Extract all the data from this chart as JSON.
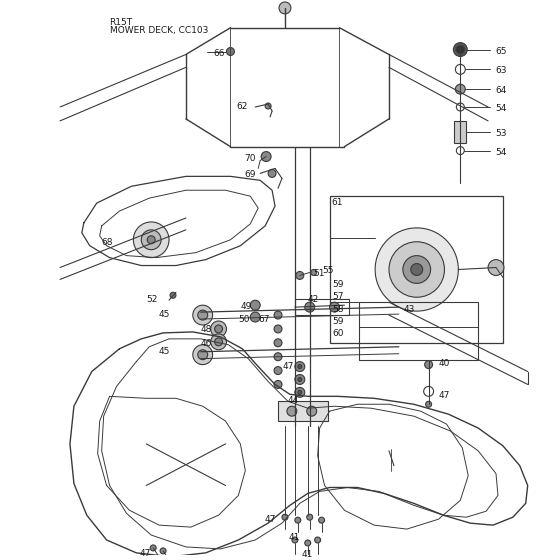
{
  "bg_color": "#ffffff",
  "line_color": "#3a3a3a",
  "text_color": "#1a1a1a",
  "title1": "R15T",
  "title2": "MOWER DECK, CC103",
  "figsize": [
    5.6,
    5.6
  ],
  "dpi": 100
}
